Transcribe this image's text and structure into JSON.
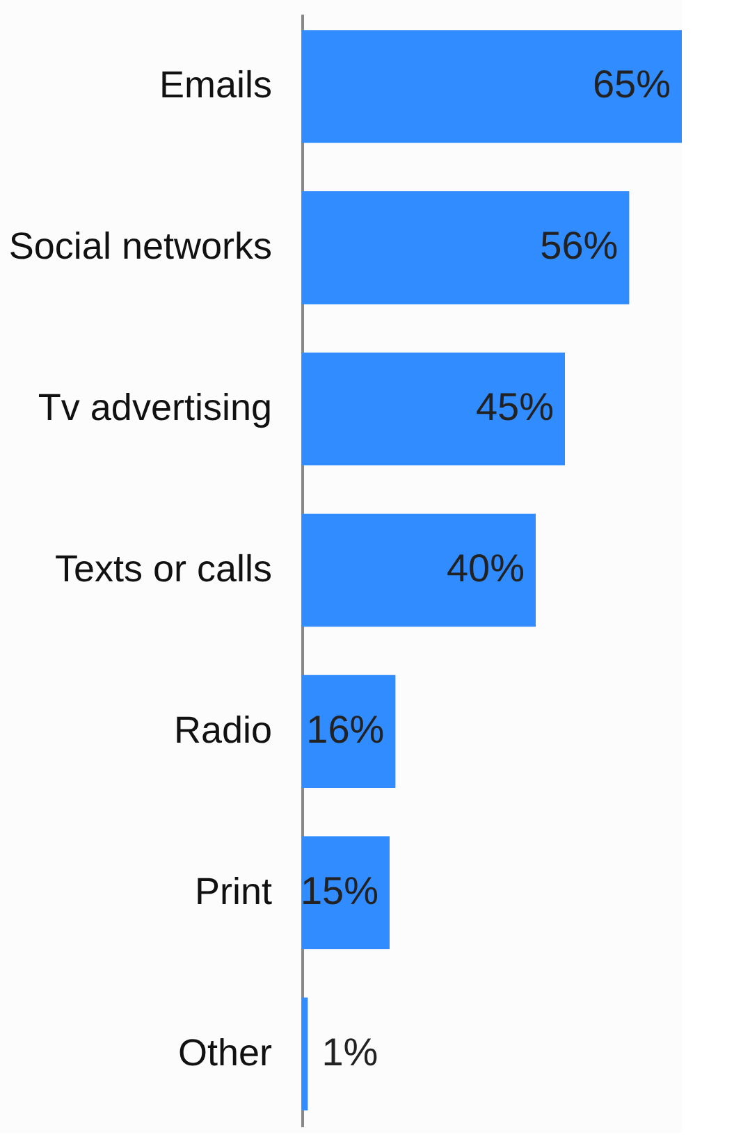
{
  "chart_data": {
    "type": "bar",
    "orientation": "horizontal",
    "categories": [
      "Emails",
      "Social networks",
      "Tv advertising",
      "Texts or calls",
      "Radio",
      "Print",
      "Other"
    ],
    "values": [
      65,
      56,
      45,
      40,
      16,
      15,
      1
    ],
    "value_labels": [
      "65%",
      "56%",
      "45%",
      "40%",
      "16%",
      "15%",
      "1%"
    ],
    "color": "#318cff"
  }
}
